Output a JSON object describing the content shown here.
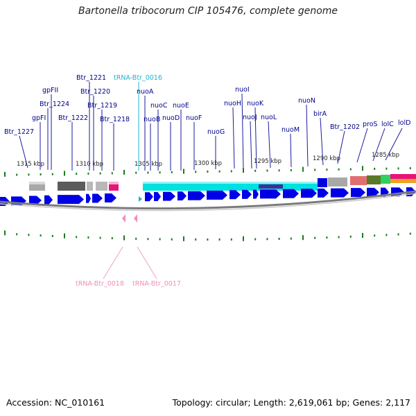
{
  "title": "Bartonella tribocorum CIP 105476, complete genome",
  "footer": {
    "accession": "Accession: NC_010161",
    "summary": "Topology: circular; Length: 2,619,061 bp; Genes: 2,117"
  },
  "colors": {
    "gene_label": "#00008b",
    "trna_label": "#20b2d0",
    "trna_label_pink": "#f08fb8",
    "cds_arrow": "#0000e6",
    "tick": "#1a7a1a",
    "backbone": "#808080"
  },
  "scale_labels": [
    "1315 kbp",
    "1310 kbp",
    "1305 kbp",
    "1300 kbp",
    "1295 kbp",
    "1290 kbp",
    "1285 kbp"
  ],
  "upper_labels": [
    {
      "text": "Btr_1227",
      "kind": "gene"
    },
    {
      "text": "gpFI",
      "kind": "gene"
    },
    {
      "text": "Btr_1224",
      "kind": "gene"
    },
    {
      "text": "gpFII",
      "kind": "gene"
    },
    {
      "text": "Btr_1222",
      "kind": "gene"
    },
    {
      "text": "Btr_1221",
      "kind": "gene"
    },
    {
      "text": "Btr_1220",
      "kind": "gene"
    },
    {
      "text": "Btr_1219",
      "kind": "gene"
    },
    {
      "text": "Btr_1218",
      "kind": "gene"
    },
    {
      "text": "tRNA-Btr_0016",
      "kind": "trna"
    },
    {
      "text": "nuoA",
      "kind": "gene"
    },
    {
      "text": "nuoB",
      "kind": "gene"
    },
    {
      "text": "nuoC",
      "kind": "gene"
    },
    {
      "text": "nuoD",
      "kind": "gene"
    },
    {
      "text": "nuoE",
      "kind": "gene"
    },
    {
      "text": "nuoF",
      "kind": "gene"
    },
    {
      "text": "nuoG",
      "kind": "gene"
    },
    {
      "text": "nuoH",
      "kind": "gene"
    },
    {
      "text": "nuoI",
      "kind": "gene"
    },
    {
      "text": "nuoJ",
      "kind": "gene"
    },
    {
      "text": "nuoK",
      "kind": "gene"
    },
    {
      "text": "nuoL",
      "kind": "gene"
    },
    {
      "text": "nuoM",
      "kind": "gene"
    },
    {
      "text": "nuoN",
      "kind": "gene"
    },
    {
      "text": "birA",
      "kind": "gene"
    },
    {
      "text": "Btr_1202",
      "kind": "gene"
    },
    {
      "text": "proS",
      "kind": "gene"
    },
    {
      "text": "lolC",
      "kind": "gene"
    },
    {
      "text": "lolD",
      "kind": "gene"
    }
  ],
  "lower_labels": [
    {
      "text": "tRNA-Btr_0018",
      "kind": "trna"
    },
    {
      "text": "tRNA-Btr_0017",
      "kind": "trna"
    }
  ]
}
